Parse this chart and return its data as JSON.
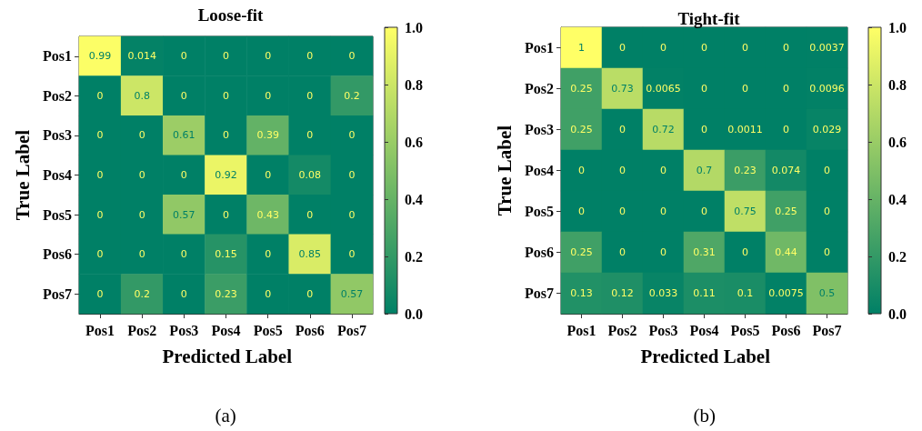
{
  "chart_data": [
    {
      "type": "heatmap",
      "title": "Loose-fit",
      "xlabel": "Predicted Label",
      "ylabel": "True Label",
      "annotations": [
        "(a)"
      ],
      "categories": [
        "Pos1",
        "Pos2",
        "Pos3",
        "Pos4",
        "Pos5",
        "Pos6",
        "Pos7"
      ],
      "y_categories": [
        "Pos1",
        "Pos2",
        "Pos3",
        "Pos4",
        "Pos5",
        "Pos6",
        "Pos7"
      ],
      "cells": [
        [
          0.99,
          0.014,
          0,
          0,
          0,
          0,
          0
        ],
        [
          0,
          0.8,
          0,
          0,
          0,
          0,
          0.2
        ],
        [
          0,
          0,
          0.61,
          0,
          0.39,
          0,
          0
        ],
        [
          0,
          0,
          0,
          0.92,
          0,
          0.08,
          0
        ],
        [
          0,
          0,
          0.57,
          0,
          0.43,
          0,
          0
        ],
        [
          0,
          0,
          0,
          0.15,
          0,
          0.85,
          0
        ],
        [
          0,
          0.2,
          0,
          0.23,
          0,
          0,
          0.57
        ]
      ],
      "data_labels": true,
      "clim": [
        0,
        1
      ],
      "cticks": [
        {
          "value": 0,
          "label": "0.0"
        },
        {
          "value": 0.2,
          "label": "0.2"
        },
        {
          "value": 0.4,
          "label": "0.4"
        },
        {
          "value": 0.6,
          "label": "0.6"
        },
        {
          "value": 0.8,
          "label": "0.8"
        },
        {
          "value": 1,
          "label": "1.0"
        }
      ]
    },
    {
      "type": "heatmap",
      "title": "Tight-fit",
      "xlabel": "Predicted Label",
      "ylabel": "True Label",
      "annotations": [
        "(b)"
      ],
      "categories": [
        "Pos1",
        "Pos2",
        "Pos3",
        "Pos4",
        "Pos5",
        "Pos6",
        "Pos7"
      ],
      "y_categories": [
        "Pos1",
        "Pos2",
        "Pos3",
        "Pos4",
        "Pos5",
        "Pos6",
        "Pos7"
      ],
      "cells": [
        [
          1,
          0,
          0,
          0,
          0,
          0,
          0.0037
        ],
        [
          0.25,
          0.73,
          0.0065,
          0,
          0,
          0,
          0.0096
        ],
        [
          0.25,
          0,
          0.72,
          0,
          0.0011,
          0,
          0.029
        ],
        [
          0,
          0,
          0,
          0.7,
          0.23,
          0.074,
          0
        ],
        [
          0,
          0,
          0,
          0,
          0.75,
          0.25,
          0
        ],
        [
          0.25,
          0,
          0,
          0.31,
          0,
          0.44,
          0
        ],
        [
          0.13,
          0.12,
          0.033,
          0.11,
          0.1,
          0.0075,
          0.5
        ]
      ],
      "data_labels": true,
      "clim": [
        0,
        1
      ],
      "cticks": [
        {
          "value": 0,
          "label": "0.0"
        },
        {
          "value": 0.2,
          "label": "0.2"
        },
        {
          "value": 0.4,
          "label": "0.4"
        },
        {
          "value": 0.6,
          "label": "0.6"
        },
        {
          "value": 0.8,
          "label": "0.8"
        },
        {
          "value": 1,
          "label": "1.0"
        }
      ]
    }
  ]
}
